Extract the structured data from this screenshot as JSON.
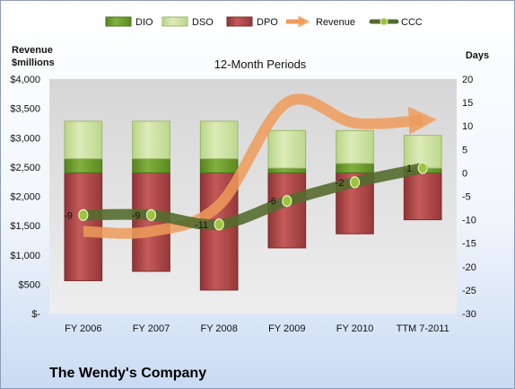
{
  "chart_data": {
    "type": "bar",
    "title": "12-Month Periods",
    "categories": [
      "FY 2006",
      "FY 2007",
      "FY 2008",
      "FY 2009",
      "FY 2010",
      "TTM 7-2011"
    ],
    "left_axis": {
      "label_line1": "Revenue",
      "label_line2": "$millions",
      "ticks": [
        "$-",
        "$500",
        "$1,000",
        "$1,500",
        "$2,000",
        "$2,500",
        "$3,000",
        "$3,500",
        "$4,000"
      ],
      "ylim": [
        0,
        4000
      ]
    },
    "right_axis": {
      "label": "Days",
      "ticks": [
        "-30",
        "-25",
        "-20",
        "-15",
        "-10",
        "-5",
        "0",
        "5",
        "10",
        "15",
        "20"
      ],
      "ylim": [
        -30,
        20
      ]
    },
    "legend": [
      "DIO",
      "DSO",
      "DPO",
      "Revenue",
      "CCC"
    ],
    "legend_position": "top",
    "colors": {
      "DIO": "#6b9a2e",
      "DSO": "#cfe3a4",
      "DPO": "#b84f4f",
      "Revenue": "#f0a060",
      "CCC": "#4f6a2a"
    },
    "series": [
      {
        "name": "DIO",
        "axis": "right",
        "values": [
          3,
          3,
          3,
          1,
          2,
          1
        ]
      },
      {
        "name": "DSO",
        "axis": "right",
        "values": [
          8,
          8,
          8,
          8,
          7,
          7
        ]
      },
      {
        "name": "DPO",
        "axis": "right",
        "values": [
          -23,
          -21,
          -25,
          -16,
          -13,
          -10
        ]
      },
      {
        "name": "Revenue",
        "axis": "left",
        "values": [
          1400,
          1400,
          1850,
          3600,
          3250,
          3300
        ]
      },
      {
        "name": "CCC",
        "axis": "right",
        "values": [
          -9,
          -9,
          -11,
          -6,
          -2,
          1
        ],
        "labels": [
          "-9",
          "-9",
          "-11",
          "-6",
          "-2",
          "1"
        ]
      }
    ],
    "grid": false
  },
  "footer": {
    "company": "The Wendy's Company"
  }
}
